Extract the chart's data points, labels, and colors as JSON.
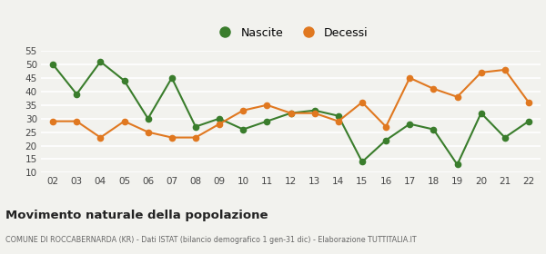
{
  "years": [
    "02",
    "03",
    "04",
    "05",
    "06",
    "07",
    "08",
    "09",
    "10",
    "11",
    "12",
    "13",
    "14",
    "15",
    "16",
    "17",
    "18",
    "19",
    "20",
    "21",
    "22"
  ],
  "nascite": [
    50,
    39,
    51,
    44,
    30,
    45,
    27,
    30,
    26,
    29,
    32,
    33,
    31,
    14,
    22,
    28,
    26,
    13,
    32,
    23,
    29
  ],
  "decessi": [
    29,
    29,
    23,
    29,
    25,
    23,
    23,
    28,
    33,
    35,
    32,
    32,
    29,
    36,
    27,
    45,
    41,
    38,
    47,
    48,
    36
  ],
  "nascite_color": "#3a7d2c",
  "decessi_color": "#e07820",
  "background_color": "#f2f2ee",
  "grid_color": "#ffffff",
  "title": "Movimento naturale della popolazione",
  "subtitle": "COMUNE DI ROCCABERNARDA (KR) - Dati ISTAT (bilancio demografico 1 gen-31 dic) - Elaborazione TUTTITALIA.IT",
  "legend_nascite": "Nascite",
  "legend_decessi": "Decessi",
  "ylim": [
    10,
    55
  ],
  "yticks": [
    10,
    15,
    20,
    25,
    30,
    35,
    40,
    45,
    50,
    55
  ],
  "marker_size": 4.5,
  "line_width": 1.5
}
